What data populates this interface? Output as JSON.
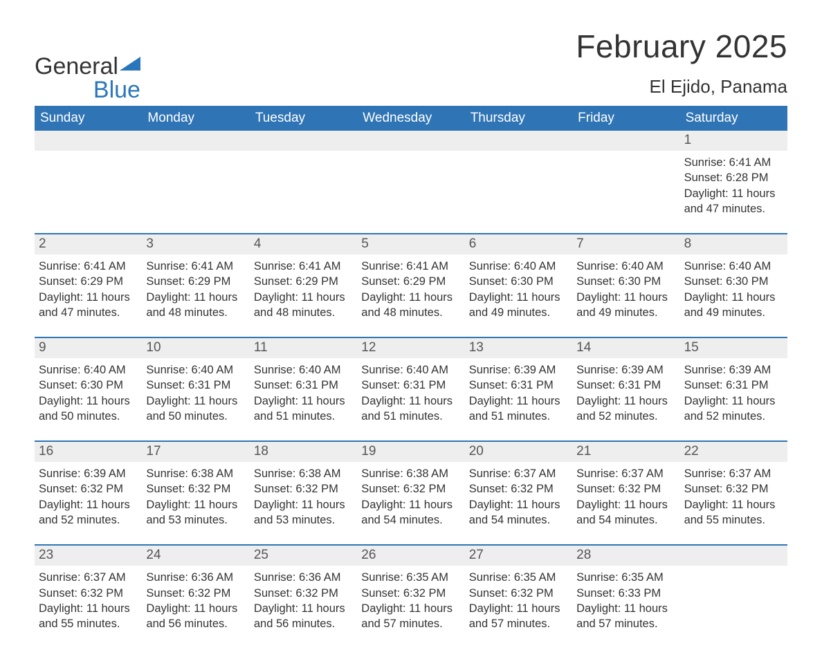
{
  "logo": {
    "word1": "General",
    "word2": "Blue"
  },
  "title": "February 2025",
  "location": "El Ejido, Panama",
  "colors": {
    "header_bg": "#2f74b5",
    "week_border": "#2f74b5",
    "daynum_bg": "#eeeeee",
    "text": "#333333",
    "logo_blue": "#2a76bb"
  },
  "weekdays": [
    "Sunday",
    "Monday",
    "Tuesday",
    "Wednesday",
    "Thursday",
    "Friday",
    "Saturday"
  ],
  "weeks": [
    {
      "nums": [
        "",
        "",
        "",
        "",
        "",
        "",
        "1"
      ],
      "cells": [
        null,
        null,
        null,
        null,
        null,
        null,
        {
          "sr": "Sunrise: 6:41 AM",
          "ss": "Sunset: 6:28 PM",
          "d1": "Daylight: 11 hours",
          "d2": "and 47 minutes."
        }
      ]
    },
    {
      "nums": [
        "2",
        "3",
        "4",
        "5",
        "6",
        "7",
        "8"
      ],
      "cells": [
        {
          "sr": "Sunrise: 6:41 AM",
          "ss": "Sunset: 6:29 PM",
          "d1": "Daylight: 11 hours",
          "d2": "and 47 minutes."
        },
        {
          "sr": "Sunrise: 6:41 AM",
          "ss": "Sunset: 6:29 PM",
          "d1": "Daylight: 11 hours",
          "d2": "and 48 minutes."
        },
        {
          "sr": "Sunrise: 6:41 AM",
          "ss": "Sunset: 6:29 PM",
          "d1": "Daylight: 11 hours",
          "d2": "and 48 minutes."
        },
        {
          "sr": "Sunrise: 6:41 AM",
          "ss": "Sunset: 6:29 PM",
          "d1": "Daylight: 11 hours",
          "d2": "and 48 minutes."
        },
        {
          "sr": "Sunrise: 6:40 AM",
          "ss": "Sunset: 6:30 PM",
          "d1": "Daylight: 11 hours",
          "d2": "and 49 minutes."
        },
        {
          "sr": "Sunrise: 6:40 AM",
          "ss": "Sunset: 6:30 PM",
          "d1": "Daylight: 11 hours",
          "d2": "and 49 minutes."
        },
        {
          "sr": "Sunrise: 6:40 AM",
          "ss": "Sunset: 6:30 PM",
          "d1": "Daylight: 11 hours",
          "d2": "and 49 minutes."
        }
      ]
    },
    {
      "nums": [
        "9",
        "10",
        "11",
        "12",
        "13",
        "14",
        "15"
      ],
      "cells": [
        {
          "sr": "Sunrise: 6:40 AM",
          "ss": "Sunset: 6:30 PM",
          "d1": "Daylight: 11 hours",
          "d2": "and 50 minutes."
        },
        {
          "sr": "Sunrise: 6:40 AM",
          "ss": "Sunset: 6:31 PM",
          "d1": "Daylight: 11 hours",
          "d2": "and 50 minutes."
        },
        {
          "sr": "Sunrise: 6:40 AM",
          "ss": "Sunset: 6:31 PM",
          "d1": "Daylight: 11 hours",
          "d2": "and 51 minutes."
        },
        {
          "sr": "Sunrise: 6:40 AM",
          "ss": "Sunset: 6:31 PM",
          "d1": "Daylight: 11 hours",
          "d2": "and 51 minutes."
        },
        {
          "sr": "Sunrise: 6:39 AM",
          "ss": "Sunset: 6:31 PM",
          "d1": "Daylight: 11 hours",
          "d2": "and 51 minutes."
        },
        {
          "sr": "Sunrise: 6:39 AM",
          "ss": "Sunset: 6:31 PM",
          "d1": "Daylight: 11 hours",
          "d2": "and 52 minutes."
        },
        {
          "sr": "Sunrise: 6:39 AM",
          "ss": "Sunset: 6:31 PM",
          "d1": "Daylight: 11 hours",
          "d2": "and 52 minutes."
        }
      ]
    },
    {
      "nums": [
        "16",
        "17",
        "18",
        "19",
        "20",
        "21",
        "22"
      ],
      "cells": [
        {
          "sr": "Sunrise: 6:39 AM",
          "ss": "Sunset: 6:32 PM",
          "d1": "Daylight: 11 hours",
          "d2": "and 52 minutes."
        },
        {
          "sr": "Sunrise: 6:38 AM",
          "ss": "Sunset: 6:32 PM",
          "d1": "Daylight: 11 hours",
          "d2": "and 53 minutes."
        },
        {
          "sr": "Sunrise: 6:38 AM",
          "ss": "Sunset: 6:32 PM",
          "d1": "Daylight: 11 hours",
          "d2": "and 53 minutes."
        },
        {
          "sr": "Sunrise: 6:38 AM",
          "ss": "Sunset: 6:32 PM",
          "d1": "Daylight: 11 hours",
          "d2": "and 54 minutes."
        },
        {
          "sr": "Sunrise: 6:37 AM",
          "ss": "Sunset: 6:32 PM",
          "d1": "Daylight: 11 hours",
          "d2": "and 54 minutes."
        },
        {
          "sr": "Sunrise: 6:37 AM",
          "ss": "Sunset: 6:32 PM",
          "d1": "Daylight: 11 hours",
          "d2": "and 54 minutes."
        },
        {
          "sr": "Sunrise: 6:37 AM",
          "ss": "Sunset: 6:32 PM",
          "d1": "Daylight: 11 hours",
          "d2": "and 55 minutes."
        }
      ]
    },
    {
      "nums": [
        "23",
        "24",
        "25",
        "26",
        "27",
        "28",
        ""
      ],
      "cells": [
        {
          "sr": "Sunrise: 6:37 AM",
          "ss": "Sunset: 6:32 PM",
          "d1": "Daylight: 11 hours",
          "d2": "and 55 minutes."
        },
        {
          "sr": "Sunrise: 6:36 AM",
          "ss": "Sunset: 6:32 PM",
          "d1": "Daylight: 11 hours",
          "d2": "and 56 minutes."
        },
        {
          "sr": "Sunrise: 6:36 AM",
          "ss": "Sunset: 6:32 PM",
          "d1": "Daylight: 11 hours",
          "d2": "and 56 minutes."
        },
        {
          "sr": "Sunrise: 6:35 AM",
          "ss": "Sunset: 6:32 PM",
          "d1": "Daylight: 11 hours",
          "d2": "and 57 minutes."
        },
        {
          "sr": "Sunrise: 6:35 AM",
          "ss": "Sunset: 6:32 PM",
          "d1": "Daylight: 11 hours",
          "d2": "and 57 minutes."
        },
        {
          "sr": "Sunrise: 6:35 AM",
          "ss": "Sunset: 6:33 PM",
          "d1": "Daylight: 11 hours",
          "d2": "and 57 minutes."
        },
        null
      ]
    }
  ]
}
